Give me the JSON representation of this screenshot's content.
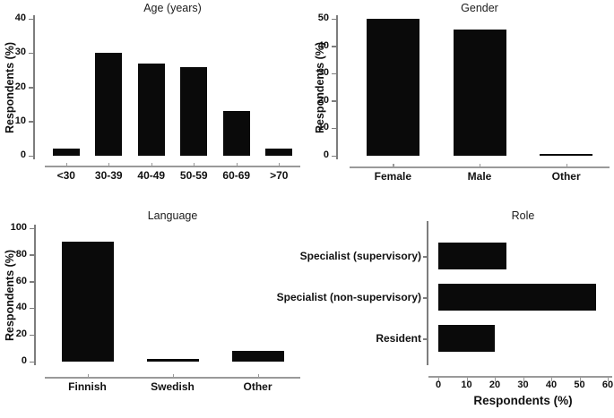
{
  "colors": {
    "bar": "#0a0a0a",
    "value_axis_line": "#7d7d7d",
    "category_axis_line": "#9a9a9a",
    "text": "#111111",
    "background": "#ffffff"
  },
  "chart_data": [
    {
      "id": "age",
      "type": "bar",
      "title": "Age (years)",
      "ylabel": "Respondents (%)",
      "categories": [
        "<30",
        "30-39",
        "40-49",
        "50-59",
        "60-69",
        ">70"
      ],
      "values": [
        2,
        30,
        27,
        26,
        13,
        2
      ],
      "ylim": [
        0,
        40
      ],
      "yticks": [
        0,
        10,
        20,
        30,
        40
      ],
      "grid": false,
      "legend": "none"
    },
    {
      "id": "gender",
      "type": "bar",
      "title": "Gender",
      "ylabel": "Respondents (%)",
      "categories": [
        "Female",
        "Male",
        "Other"
      ],
      "values": [
        50,
        46,
        0.5
      ],
      "ylim": [
        0,
        50
      ],
      "yticks": [
        0,
        10,
        20,
        30,
        40,
        50
      ],
      "grid": false,
      "legend": "none"
    },
    {
      "id": "language",
      "type": "bar",
      "title": "Language",
      "ylabel": "Respondents (%)",
      "categories": [
        "Finnish",
        "Swedish",
        "Other"
      ],
      "values": [
        90,
        2,
        8
      ],
      "ylim": [
        0,
        100
      ],
      "yticks": [
        0,
        20,
        40,
        60,
        80,
        100
      ],
      "grid": false,
      "legend": "none"
    },
    {
      "id": "role",
      "type": "bar",
      "orientation": "horizontal",
      "title": "Role",
      "xlabel": "Respondents (%)",
      "categories": [
        "Specialist (supervisory)",
        "Specialist (non-supervisory)",
        "Resident"
      ],
      "values": [
        24,
        56,
        20
      ],
      "xlim": [
        0,
        60
      ],
      "xticks": [
        0,
        10,
        20,
        30,
        40,
        50,
        60
      ],
      "grid": false,
      "legend": "none"
    }
  ]
}
